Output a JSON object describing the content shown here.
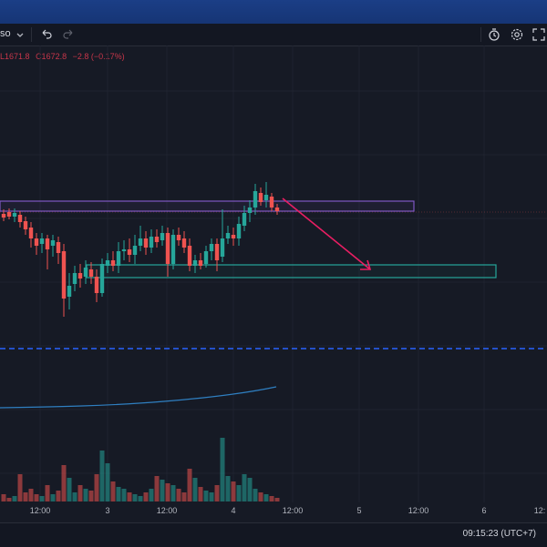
{
  "toolbar": {
    "symbol_fragment": "so",
    "icons": [
      "chevron-down-icon",
      "undo-icon",
      "redo-icon",
      "timer-icon",
      "gear-icon",
      "fullscreen-icon"
    ]
  },
  "ohlc": {
    "low": "L1671.8",
    "close": "C1672.8",
    "change": "−2.8 (−0.17%)"
  },
  "time_axis": {
    "ticks": [
      "12:00",
      "3",
      "12:00",
      "4",
      "12:00",
      "5",
      "12:00",
      "6",
      "12:"
    ]
  },
  "status": {
    "clock": "09:15:23 (UTC+7)"
  },
  "colors": {
    "background": "#161a25",
    "up": "#26a69a",
    "down": "#ef5350",
    "resistance_zone": "#7e57c2",
    "support_zone": "#26a69a",
    "arrow": "#e91e63",
    "moving_average": "#2962ff",
    "dashed_line": "#2962ff"
  },
  "chart_data": {
    "type": "candlestick",
    "x_labels": [
      "12:00",
      "3",
      "12:00",
      "4",
      "12:00",
      "5",
      "12:00",
      "6"
    ],
    "last_close": 1672.8,
    "last_low": 1671.8,
    "last_change": -2.8,
    "last_change_pct": -0.17
  }
}
